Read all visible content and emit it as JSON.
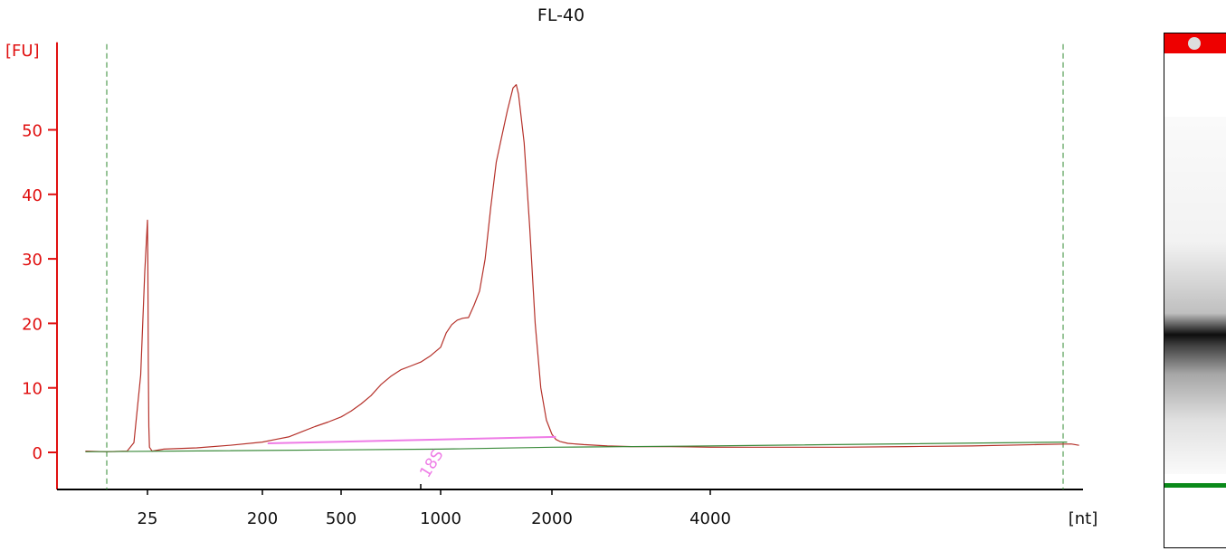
{
  "chart_data": {
    "type": "line",
    "title": "FL-40",
    "ylabel": "[FU]",
    "xlabel": "[nt]",
    "ylim": [
      -5.5,
      63
    ],
    "y_ticks": [
      0,
      10,
      20,
      30,
      40,
      50
    ],
    "x_tick_labels": [
      "25",
      "200",
      "500",
      "1000",
      "2000",
      "4000"
    ],
    "x_ticks_nt": [
      25,
      200,
      500,
      1000,
      2000,
      4000
    ],
    "series": [
      {
        "style": "electropherogram",
        "color": "#b5312a",
        "points": [
          [
            16,
            0.2
          ],
          [
            19,
            0.1
          ],
          [
            22,
            0.2
          ],
          [
            23,
            1.5
          ],
          [
            24,
            12
          ],
          [
            24.6,
            28
          ],
          [
            25,
            36
          ],
          [
            25.5,
            30
          ],
          [
            26.2,
            14
          ],
          [
            27,
            4
          ],
          [
            28,
            0.8
          ],
          [
            32,
            0.2
          ],
          [
            50,
            0.5
          ],
          [
            100,
            0.7
          ],
          [
            150,
            1.1
          ],
          [
            200,
            1.6
          ],
          [
            250,
            2.0
          ],
          [
            300,
            2.4
          ],
          [
            350,
            3.2
          ],
          [
            400,
            4.0
          ],
          [
            450,
            4.7
          ],
          [
            500,
            5.5
          ],
          [
            550,
            6.4
          ],
          [
            600,
            7.5
          ],
          [
            650,
            8.8
          ],
          [
            700,
            10.5
          ],
          [
            750,
            11.8
          ],
          [
            800,
            12.8
          ],
          [
            850,
            13.4
          ],
          [
            900,
            14.0
          ],
          [
            950,
            15.0
          ],
          [
            1000,
            16.3
          ],
          [
            1050,
            18.5
          ],
          [
            1100,
            19.8
          ],
          [
            1150,
            20.5
          ],
          [
            1200,
            20.8
          ],
          [
            1250,
            20.9
          ],
          [
            1300,
            22.8
          ],
          [
            1350,
            25.0
          ],
          [
            1400,
            30.0
          ],
          [
            1450,
            38.0
          ],
          [
            1500,
            45.0
          ],
          [
            1550,
            49.0
          ],
          [
            1600,
            53.0
          ],
          [
            1650,
            56.5
          ],
          [
            1680,
            57.0
          ],
          [
            1700,
            55.5
          ],
          [
            1750,
            48.0
          ],
          [
            1800,
            35.0
          ],
          [
            1850,
            20.0
          ],
          [
            1900,
            10.0
          ],
          [
            1950,
            5.0
          ],
          [
            2000,
            2.8
          ],
          [
            2050,
            2.0
          ],
          [
            2100,
            1.7
          ],
          [
            2200,
            1.4
          ],
          [
            2400,
            1.2
          ],
          [
            2700,
            1.0
          ],
          [
            3000,
            0.9
          ],
          [
            3500,
            0.9
          ],
          [
            4000,
            0.8
          ],
          [
            4500,
            0.8
          ],
          [
            5000,
            0.8
          ],
          [
            5500,
            0.9
          ],
          [
            6000,
            1.0
          ],
          [
            6500,
            1.2
          ],
          [
            6900,
            1.3
          ],
          [
            7100,
            1.1
          ]
        ]
      },
      {
        "style": "baseline",
        "color": "#3a8a3a",
        "points": [
          [
            16,
            0.1
          ],
          [
            1000,
            0.5
          ],
          [
            2000,
            0.8
          ],
          [
            4000,
            1.0
          ],
          [
            6800,
            1.6
          ]
        ]
      },
      {
        "style": "peak-region",
        "color": "#ee7be6",
        "points": [
          [
            220,
            1.4
          ],
          [
            2050,
            2.4
          ]
        ]
      }
    ],
    "vlines": [
      {
        "nt": 19,
        "style": "dashed",
        "color": "#2f8a2f"
      },
      {
        "nt": 6700,
        "style": "dashed",
        "color": "#2f8a2f"
      }
    ],
    "annotations": [
      {
        "text": "18S",
        "nt": 900,
        "color": "#ee7be6"
      }
    ]
  },
  "gel": {
    "top_color": "#ee0000",
    "band_color": "#000000",
    "marker_color": "#0a8a1a"
  }
}
